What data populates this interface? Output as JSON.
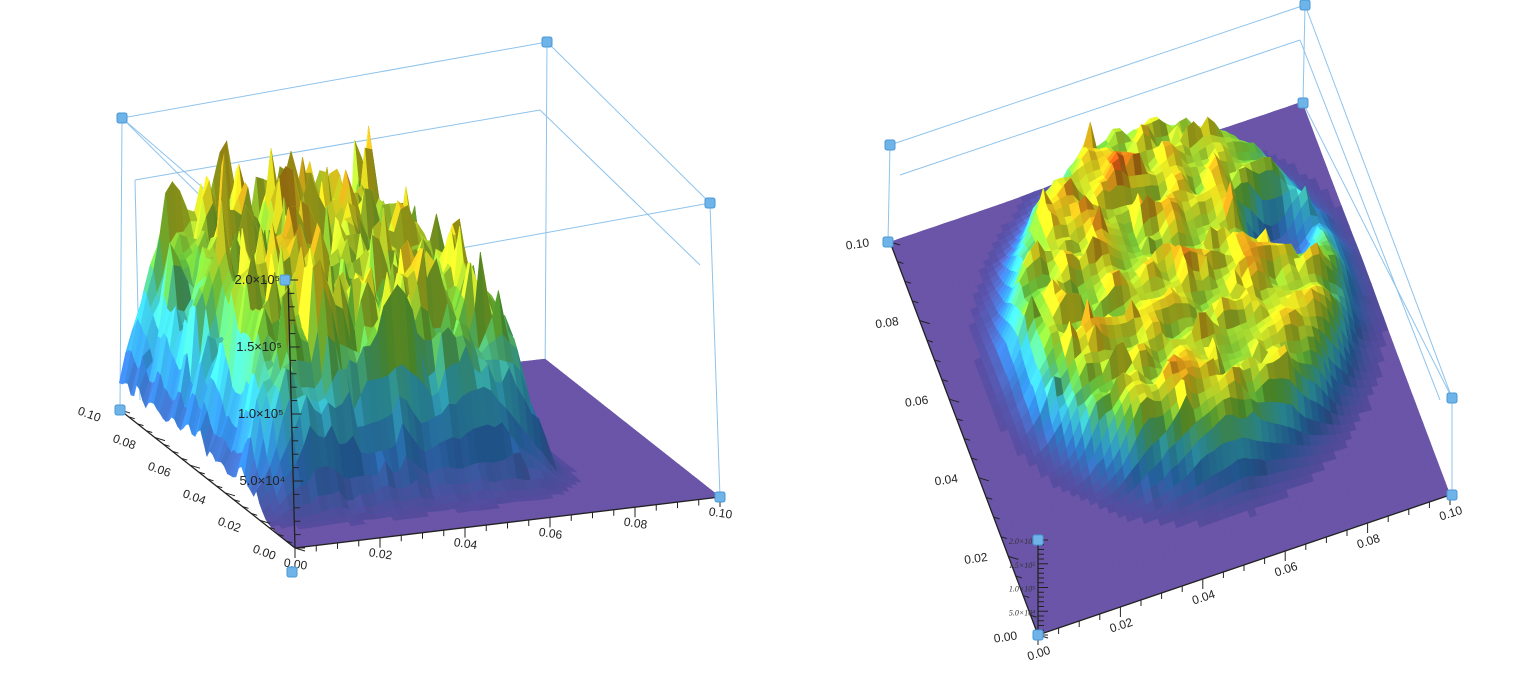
{
  "chart_data": [
    {
      "type": "surface",
      "title": "",
      "x_range": [
        0.0,
        0.1
      ],
      "y_range": [
        0.0,
        0.1
      ],
      "z_range": [
        0,
        200000
      ],
      "x_ticks": [
        "0.00",
        "0.02",
        "0.04",
        "0.06",
        "0.08",
        "0.10"
      ],
      "y_ticks": [
        "0.00",
        "0.02",
        "0.04",
        "0.06",
        "0.08",
        "0.10"
      ],
      "z_ticks": [
        "5.0×10⁴",
        "1.0×10⁵",
        "1.5×10⁵",
        "2.0×10⁵"
      ],
      "z_tick_values": [
        50000,
        100000,
        150000,
        200000
      ],
      "colormap": [
        "#5a4a9e",
        "#2f7fd0",
        "#3cc8d8",
        "#6cc83c",
        "#e6e020",
        "#d03a10"
      ],
      "plane_color": "#6a55a8",
      "box_color": "#8ec3ec"
    },
    {
      "type": "surface",
      "title": "",
      "x_range": [
        0.0,
        0.1
      ],
      "y_range": [
        0.0,
        0.1
      ],
      "z_range": [
        0,
        200000
      ],
      "x_ticks": [
        "0.00",
        "0.02",
        "0.04",
        "0.06",
        "0.08",
        "0.10"
      ],
      "y_ticks": [
        "0.00",
        "0.02",
        "0.04",
        "0.06",
        "0.08",
        "0.10"
      ],
      "z_ticks": [
        "5.0×10⁴",
        "1.0×10⁵",
        "1.5×10⁵",
        "2.0×10⁵"
      ],
      "z_tick_values": [
        50000,
        100000,
        150000,
        200000
      ],
      "colormap": [
        "#5a4a9e",
        "#2f7fd0",
        "#3cc8d8",
        "#6cc83c",
        "#e6e020",
        "#d03a10"
      ],
      "plane_color": "#6a55a8",
      "box_color": "#8ec3ec"
    }
  ]
}
